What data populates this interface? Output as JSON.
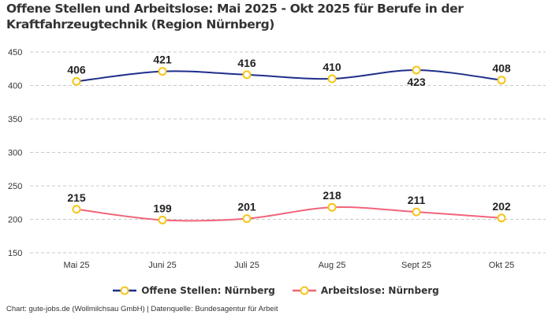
{
  "chart_data": {
    "type": "line",
    "title": "Offene Stellen und Arbeitslose: Mai 2025 - Okt 2025 für Berufe in der Kraftfahrzeugtechnik (Region Nürnberg)",
    "categories": [
      "Mai 25",
      "Juni 25",
      "Juli 25",
      "Aug 25",
      "Sept 25",
      "Okt 25"
    ],
    "series": [
      {
        "name": "Offene Stellen: Nürnberg",
        "values": [
          406,
          421,
          416,
          410,
          423,
          408
        ],
        "color": "#1f2e8a",
        "marker_color": "#f5c518"
      },
      {
        "name": "Arbeitslose: Nürnberg",
        "values": [
          215,
          199,
          201,
          218,
          211,
          202
        ],
        "color": "#f0647a",
        "marker_color": "#f5c518"
      }
    ],
    "yticks": [
      150,
      200,
      250,
      300,
      350,
      400,
      450
    ],
    "ylim": [
      150,
      450
    ],
    "grid": true,
    "legend": "bottom"
  },
  "footer": "Chart: gute-jobs.de (Wollmilchsau GmbH) | Datenquelle: Bundesagentur für Arbeit"
}
